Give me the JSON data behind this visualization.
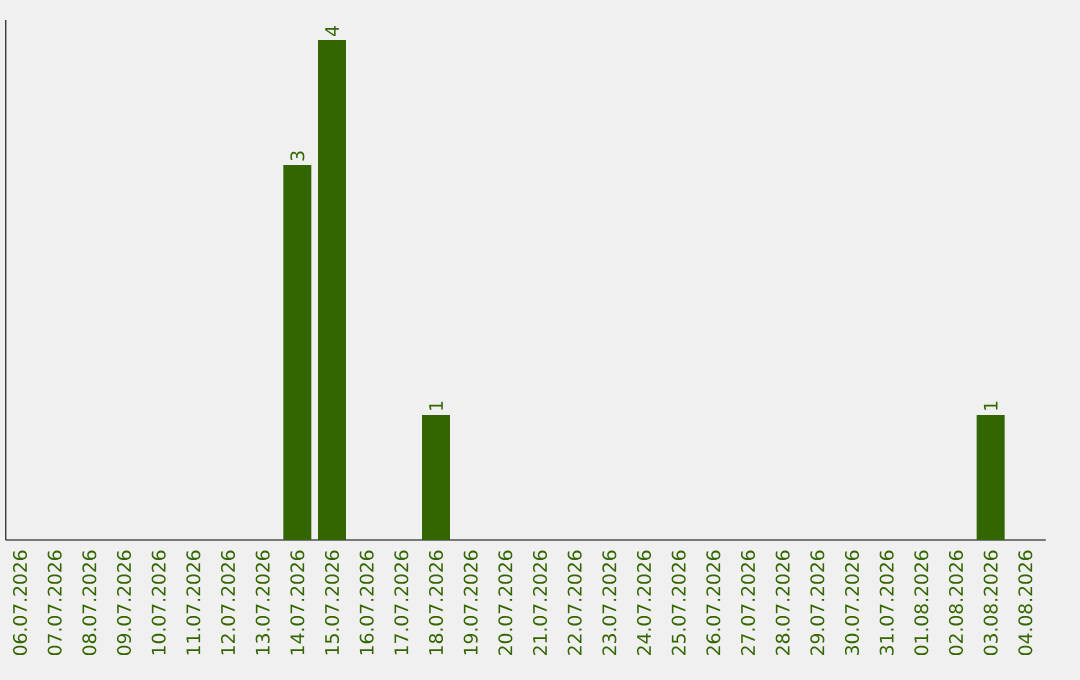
{
  "chart_data": {
    "type": "bar",
    "color": "#336600",
    "categories": [
      "06.07.2026",
      "07.07.2026",
      "08.07.2026",
      "09.07.2026",
      "10.07.2026",
      "11.07.2026",
      "12.07.2026",
      "13.07.2026",
      "14.07.2026",
      "15.07.2026",
      "16.07.2026",
      "17.07.2026",
      "18.07.2026",
      "19.07.2026",
      "20.07.2026",
      "21.07.2026",
      "22.07.2026",
      "23.07.2026",
      "24.07.2026",
      "25.07.2026",
      "26.07.2026",
      "27.07.2026",
      "28.07.2026",
      "29.07.2026",
      "30.07.2026",
      "31.07.2026",
      "01.08.2026",
      "02.08.2026",
      "03.08.2026",
      "04.08.2026"
    ],
    "values": [
      0,
      0,
      0,
      0,
      0,
      0,
      0,
      0,
      3,
      4,
      0,
      0,
      1,
      0,
      0,
      0,
      0,
      0,
      0,
      0,
      0,
      0,
      0,
      0,
      0,
      0,
      0,
      0,
      1,
      0
    ],
    "value_labels": [
      null,
      null,
      null,
      null,
      null,
      null,
      null,
      null,
      "3",
      "4",
      null,
      null,
      "1",
      null,
      null,
      null,
      null,
      null,
      null,
      null,
      null,
      null,
      null,
      null,
      null,
      null,
      null,
      null,
      "1",
      null
    ],
    "grid": false
  }
}
